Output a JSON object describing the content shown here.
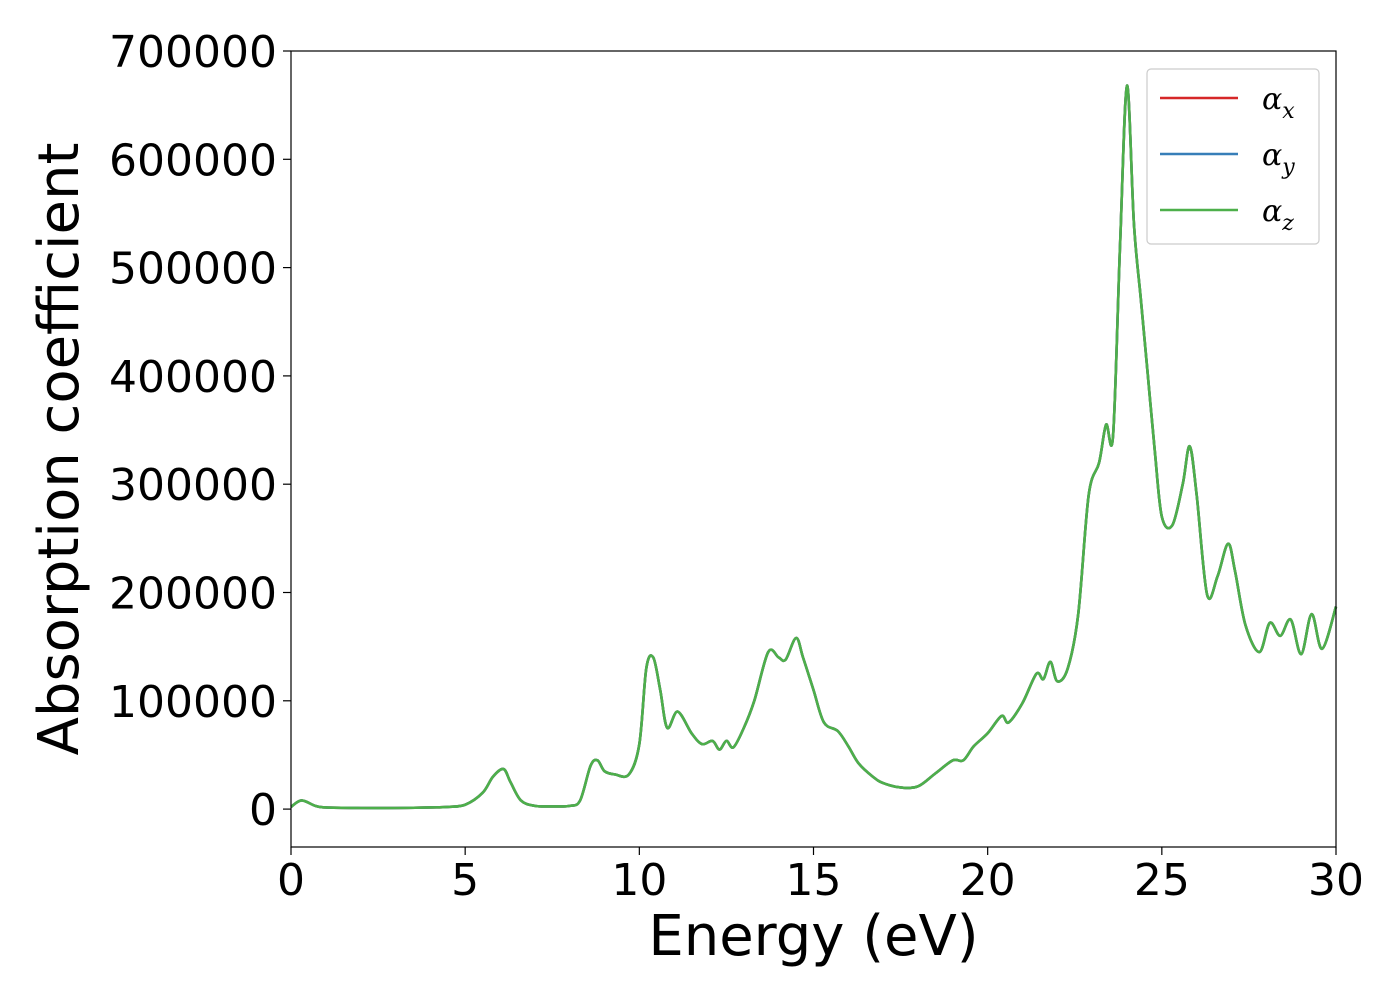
{
  "chart_data": {
    "type": "line",
    "title": "",
    "xlabel": "Energy (eV)",
    "ylabel": "Absorption coefficient",
    "xlim": [
      0,
      30
    ],
    "ylim": [
      -35000,
      700000
    ],
    "xticks": [
      0,
      5,
      10,
      15,
      20,
      25,
      30
    ],
    "yticks": [
      0,
      100000,
      200000,
      300000,
      400000,
      500000,
      600000,
      700000
    ],
    "grid": false,
    "legend_position": "top-right",
    "x": [
      0,
      0.3,
      0.7,
      1,
      2,
      3,
      4,
      4.5,
      5,
      5.5,
      5.8,
      6.1,
      6.3,
      6.6,
      7,
      7.5,
      8,
      8.3,
      8.6,
      8.8,
      9,
      9.3,
      9.7,
      10,
      10.2,
      10.4,
      10.6,
      10.8,
      11.1,
      11.5,
      11.8,
      12.1,
      12.3,
      12.5,
      12.7,
      13,
      13.3,
      13.7,
      14,
      14.2,
      14.5,
      14.7,
      15,
      15.3,
      15.7,
      16,
      16.3,
      16.7,
      17,
      17.5,
      18,
      18.5,
      19,
      19.3,
      19.6,
      20,
      20.4,
      20.6,
      21,
      21.4,
      21.6,
      21.8,
      22,
      22.3,
      22.6,
      22.9,
      23.2,
      23.4,
      23.6,
      23.8,
      24,
      24.2,
      24.4,
      24.6,
      24.8,
      25,
      25.3,
      25.6,
      25.8,
      26,
      26.3,
      26.6,
      26.9,
      27.1,
      27.4,
      27.8,
      28.1,
      28.4,
      28.7,
      29,
      29.3,
      29.6,
      30
    ],
    "series": [
      {
        "name": "αx",
        "color": "#d62728",
        "values": [
          2000,
          8000,
          3000,
          1500,
          1000,
          1000,
          1500,
          2000,
          4000,
          15000,
          30000,
          37000,
          25000,
          8000,
          3000,
          2500,
          3000,
          8000,
          40000,
          45000,
          35000,
          32000,
          32000,
          60000,
          130000,
          140000,
          110000,
          75000,
          90000,
          70000,
          60000,
          63000,
          55000,
          63000,
          57000,
          75000,
          100000,
          145000,
          140000,
          138000,
          158000,
          140000,
          110000,
          80000,
          72000,
          58000,
          42000,
          30000,
          24000,
          20000,
          21000,
          33000,
          45000,
          45000,
          58000,
          70000,
          86000,
          80000,
          98000,
          125000,
          120000,
          136000,
          118000,
          130000,
          180000,
          290000,
          320000,
          355000,
          345000,
          520000,
          668000,
          540000,
          470000,
          400000,
          330000,
          270000,
          262000,
          300000,
          335000,
          290000,
          198000,
          215000,
          245000,
          220000,
          170000,
          145000,
          172000,
          160000,
          175000,
          143000,
          180000,
          148000,
          187000
        ]
      },
      {
        "name": "αy",
        "color": "#377eb8",
        "values": [
          2000,
          8000,
          3000,
          1500,
          1000,
          1000,
          1500,
          2000,
          4000,
          15000,
          30000,
          37000,
          25000,
          8000,
          3000,
          2500,
          3000,
          8000,
          40000,
          45000,
          35000,
          32000,
          32000,
          60000,
          130000,
          140000,
          110000,
          75000,
          90000,
          70000,
          60000,
          63000,
          55000,
          63000,
          57000,
          75000,
          100000,
          145000,
          140000,
          138000,
          158000,
          140000,
          110000,
          80000,
          72000,
          58000,
          42000,
          30000,
          24000,
          20000,
          21000,
          33000,
          45000,
          45000,
          58000,
          70000,
          86000,
          80000,
          98000,
          125000,
          120000,
          136000,
          118000,
          130000,
          180000,
          290000,
          320000,
          355000,
          345000,
          520000,
          668000,
          540000,
          470000,
          400000,
          330000,
          270000,
          262000,
          300000,
          335000,
          290000,
          198000,
          215000,
          245000,
          220000,
          170000,
          145000,
          172000,
          160000,
          175000,
          143000,
          180000,
          148000,
          187000
        ]
      },
      {
        "name": "αz",
        "color": "#4daf4a",
        "values": [
          2000,
          8000,
          3000,
          1500,
          1000,
          1000,
          1500,
          2000,
          4000,
          15000,
          30000,
          37000,
          25000,
          8000,
          3000,
          2500,
          3000,
          8000,
          40000,
          45000,
          35000,
          32000,
          32000,
          60000,
          130000,
          140000,
          110000,
          75000,
          90000,
          70000,
          60000,
          63000,
          55000,
          63000,
          57000,
          75000,
          100000,
          145000,
          140000,
          138000,
          158000,
          140000,
          110000,
          80000,
          72000,
          58000,
          42000,
          30000,
          24000,
          20000,
          21000,
          33000,
          45000,
          45000,
          58000,
          70000,
          86000,
          80000,
          98000,
          125000,
          120000,
          136000,
          118000,
          130000,
          180000,
          290000,
          320000,
          355000,
          345000,
          520000,
          668000,
          540000,
          470000,
          400000,
          330000,
          270000,
          262000,
          300000,
          335000,
          290000,
          198000,
          215000,
          245000,
          220000,
          170000,
          145000,
          172000,
          160000,
          175000,
          143000,
          180000,
          148000,
          187000
        ]
      }
    ],
    "legend": [
      {
        "base": "α",
        "sub": "x",
        "color": "#d62728"
      },
      {
        "base": "α",
        "sub": "y",
        "color": "#377eb8"
      },
      {
        "base": "α",
        "sub": "z",
        "color": "#4daf4a"
      }
    ]
  }
}
